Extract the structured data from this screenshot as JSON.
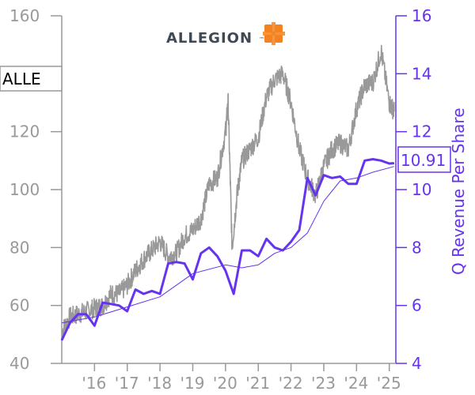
{
  "logo": {
    "text": "ALLEGION",
    "tm": "™",
    "color": "#3d4a55",
    "accent": "#f58220"
  },
  "ticker": "ALLE",
  "current_value_label": "10.91",
  "colors": {
    "price": "#999999",
    "revenue": "#6633ee",
    "axis_left": "#999999",
    "axis_right": "#6633ee"
  },
  "chart_data": {
    "type": "line",
    "y_left": {
      "ticks": [
        "40",
        "60",
        "80",
        "100",
        "120",
        "140",
        "160"
      ],
      "range": [
        40,
        160
      ]
    },
    "y_right": {
      "label": "Q Revenue Per Share",
      "ticks": [
        "4",
        "6",
        "8",
        "10",
        "12",
        "14",
        "16"
      ],
      "range": [
        4,
        16
      ]
    },
    "x_axis": {
      "ticks": [
        "'16",
        "'17",
        "'18",
        "'19",
        "'20",
        "'21",
        "'22",
        "'23",
        "'24",
        "'25"
      ],
      "range": [
        2015.0,
        2025.2
      ]
    },
    "series": [
      {
        "axis": "left",
        "x": [
          2015.0,
          2015.25,
          2015.5,
          2015.75,
          2016.0,
          2016.25,
          2016.5,
          2016.75,
          2017.0,
          2017.25,
          2017.5,
          2017.75,
          2018.0,
          2018.25,
          2018.5,
          2018.75,
          2019.0,
          2019.25,
          2019.5,
          2019.75,
          2020.0,
          2020.08,
          2020.2,
          2020.35,
          2020.5,
          2020.75,
          2021.0,
          2021.25,
          2021.5,
          2021.75,
          2022.0,
          2022.25,
          2022.5,
          2022.75,
          2023.0,
          2023.25,
          2023.5,
          2023.75,
          2024.0,
          2024.25,
          2024.5,
          2024.75,
          2025.0,
          2025.15
        ],
        "values": [
          51,
          56,
          57,
          58,
          59,
          60,
          64,
          64,
          67,
          72,
          76,
          79,
          82,
          77,
          78,
          84,
          86,
          90,
          102,
          104,
          120,
          130,
          80,
          98,
          110,
          114,
          118,
          132,
          138,
          140,
          130,
          114,
          104,
          98,
          108,
          114,
          116,
          114,
          128,
          136,
          137,
          148,
          130,
          127
        ]
      },
      {
        "axis": "right",
        "x": [
          2015.0,
          2015.25,
          2015.5,
          2015.75,
          2016.0,
          2016.25,
          2016.5,
          2016.75,
          2017.0,
          2017.25,
          2017.5,
          2017.75,
          2018.0,
          2018.25,
          2018.5,
          2018.75,
          2019.0,
          2019.25,
          2019.5,
          2019.75,
          2020.0,
          2020.25,
          2020.5,
          2020.75,
          2021.0,
          2021.25,
          2021.5,
          2021.75,
          2022.0,
          2022.25,
          2022.5,
          2022.75,
          2023.0,
          2023.25,
          2023.5,
          2023.75,
          2024.0,
          2024.25,
          2024.5,
          2024.75,
          2025.0,
          2025.15
        ],
        "values": [
          4.8,
          5.4,
          5.7,
          5.7,
          5.3,
          6.1,
          6.05,
          6.0,
          5.8,
          6.55,
          6.4,
          6.5,
          6.4,
          7.45,
          7.5,
          7.45,
          6.9,
          7.8,
          8.0,
          7.7,
          7.2,
          6.4,
          7.9,
          7.9,
          7.7,
          8.3,
          8.0,
          7.9,
          8.2,
          8.6,
          10.4,
          9.8,
          10.5,
          10.4,
          10.45,
          10.2,
          10.2,
          11.0,
          11.05,
          11.0,
          10.9,
          10.91
        ]
      },
      {
        "axis": "right",
        "x": [
          2015.0,
          2016.0,
          2017.0,
          2018.0,
          2019.0,
          2020.0,
          2020.5,
          2021.0,
          2021.5,
          2022.0,
          2022.5,
          2023.0,
          2023.5,
          2024.0,
          2024.5,
          2025.15
        ],
        "values": [
          5.4,
          5.6,
          5.95,
          6.3,
          7.1,
          7.4,
          7.3,
          7.4,
          7.8,
          8.0,
          8.5,
          9.6,
          10.3,
          10.4,
          10.6,
          10.8
        ]
      }
    ]
  }
}
